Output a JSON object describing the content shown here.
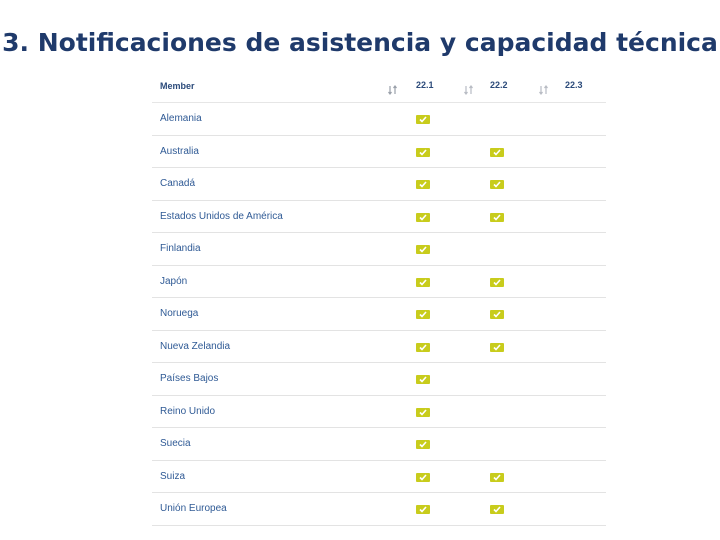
{
  "slide": {
    "title": "3. Notificaciones de asistencia y capacidad técnica"
  },
  "table": {
    "headers": {
      "member": "Member",
      "columns": [
        "22.1",
        "22.2",
        "22.3"
      ]
    },
    "rows": [
      {
        "member": "Alemania",
        "checks": [
          true,
          false,
          false
        ]
      },
      {
        "member": "Australia",
        "checks": [
          true,
          true,
          false
        ]
      },
      {
        "member": "Canadá",
        "checks": [
          true,
          true,
          false
        ]
      },
      {
        "member": "Estados Unidos de América",
        "checks": [
          true,
          true,
          false
        ]
      },
      {
        "member": "Finlandia",
        "checks": [
          true,
          false,
          false
        ]
      },
      {
        "member": "Japón",
        "checks": [
          true,
          true,
          false
        ]
      },
      {
        "member": "Noruega",
        "checks": [
          true,
          true,
          false
        ]
      },
      {
        "member": "Nueva Zelandia",
        "checks": [
          true,
          true,
          false
        ]
      },
      {
        "member": "Países Bajos",
        "checks": [
          true,
          false,
          false
        ]
      },
      {
        "member": "Reino Unido",
        "checks": [
          true,
          false,
          false
        ]
      },
      {
        "member": "Suecia",
        "checks": [
          true,
          false,
          false
        ]
      },
      {
        "member": "Suiza",
        "checks": [
          true,
          true,
          false
        ]
      },
      {
        "member": "Unión Europea",
        "checks": [
          true,
          true,
          false
        ]
      }
    ]
  },
  "colors": {
    "title": "#1f3a6b",
    "member_text": "#2f5a95",
    "check_fill": "#c8cc1c",
    "sort_icon": "#b8bcc4"
  },
  "icons": {
    "sort": "sort-arrows-icon",
    "check": "checkmark-icon"
  }
}
